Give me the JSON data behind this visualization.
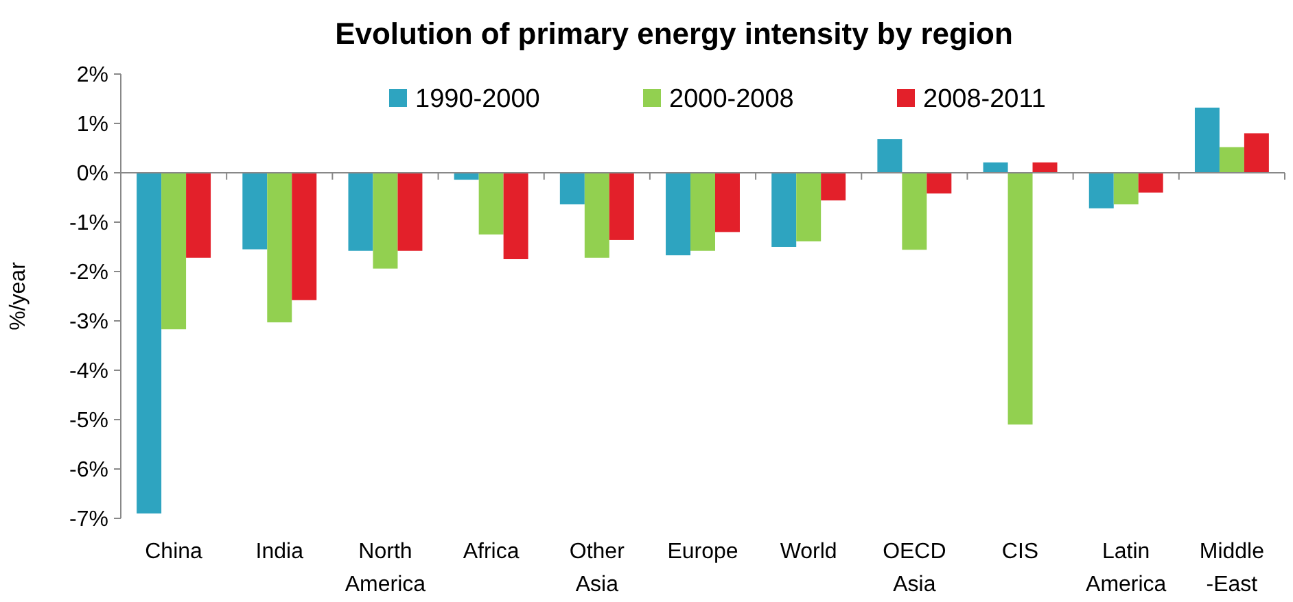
{
  "chart_data": {
    "type": "bar",
    "title": "Evolution of primary energy intensity by region",
    "ylabel": "%/year",
    "categories": [
      "China",
      "India",
      "North\nAmerica",
      "Africa",
      "Other\nAsia",
      "Europe",
      "World",
      "OECD\nAsia",
      "CIS",
      "Latin\nAmerica",
      "Middle\n-East"
    ],
    "series": [
      {
        "name": "1990-2000",
        "color": "#2ea4c0",
        "values": [
          -6.9,
          -1.55,
          -1.58,
          -0.14,
          -0.64,
          -1.67,
          -1.5,
          0.68,
          0.21,
          -0.72,
          1.32
        ]
      },
      {
        "name": "2000-2008",
        "color": "#92d050",
        "values": [
          -3.17,
          -3.03,
          -1.94,
          -1.25,
          -1.72,
          -1.58,
          -1.39,
          -1.56,
          -5.1,
          -0.64,
          0.52
        ]
      },
      {
        "name": "2008-2011",
        "color": "#e3202a",
        "values": [
          -1.72,
          -2.58,
          -1.58,
          -1.75,
          -1.36,
          -1.2,
          -0.56,
          -0.42,
          0.21,
          -0.4,
          0.8
        ]
      }
    ],
    "ylim": [
      -7,
      2
    ],
    "yticks": [
      {
        "value": -7,
        "label": "-7%"
      },
      {
        "value": -6,
        "label": "-6%"
      },
      {
        "value": -5,
        "label": "-5%"
      },
      {
        "value": -4,
        "label": "-4%"
      },
      {
        "value": -3,
        "label": "-3%"
      },
      {
        "value": -2,
        "label": "-2%"
      },
      {
        "value": -1,
        "label": "-1%"
      },
      {
        "value": 0,
        "label": "0%"
      },
      {
        "value": 1,
        "label": "1%"
      },
      {
        "value": 2,
        "label": "2%"
      }
    ],
    "legend": "top"
  }
}
